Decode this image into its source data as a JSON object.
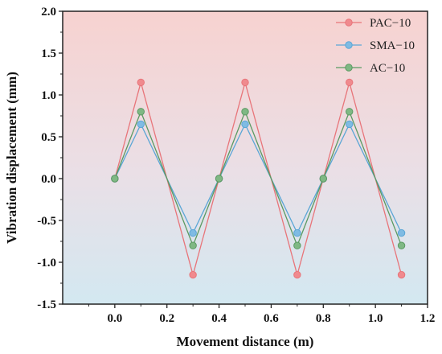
{
  "chart_data": {
    "type": "line",
    "xlabel": "Movement distance (m)",
    "ylabel": "Vibration displacement (mm)",
    "xlim": [
      -0.2,
      1.2
    ],
    "ylim": [
      -1.5,
      2.0
    ],
    "x_ticks": [
      "0.0",
      "0.2",
      "0.4",
      "0.6",
      "0.8",
      "1.0",
      "1.2"
    ],
    "x_tick_values": [
      0.0,
      0.2,
      0.4,
      0.6,
      0.8,
      1.0,
      1.2
    ],
    "y_ticks": [
      "2.0",
      "1.5",
      "1.0",
      "0.5",
      "0.0",
      "-0.5",
      "-1.0",
      "-1.5"
    ],
    "y_tick_values": [
      2.0,
      1.5,
      1.0,
      0.5,
      0.0,
      -0.5,
      -1.0,
      -1.5
    ],
    "grid": false,
    "legend_position": "top-right",
    "background": "vertical gradient from light pink (top) to light blue (bottom)",
    "series": [
      {
        "name": "PAC−10",
        "color": "#e8757a",
        "marker_color": "#f08a8e",
        "x": [
          0.0,
          0.1,
          0.3,
          0.4,
          0.5,
          0.7,
          0.8,
          0.9,
          1.1
        ],
        "y": [
          0.0,
          1.15,
          -1.15,
          0.0,
          1.15,
          -1.15,
          0.0,
          1.15,
          -1.15
        ]
      },
      {
        "name": "SMA−10",
        "color": "#5aa6d6",
        "marker_color": "#7fbbe3",
        "x": [
          0.0,
          0.1,
          0.3,
          0.4,
          0.5,
          0.7,
          0.8,
          0.9,
          1.1
        ],
        "y": [
          0.0,
          0.65,
          -0.65,
          0.0,
          0.65,
          -0.65,
          0.0,
          0.65,
          -0.65
        ]
      },
      {
        "name": "AC−10",
        "color": "#5a9a62",
        "marker_color": "#7fb884",
        "x": [
          0.0,
          0.1,
          0.3,
          0.4,
          0.5,
          0.7,
          0.8,
          0.9,
          1.1
        ],
        "y": [
          0.0,
          0.8,
          -0.8,
          0.0,
          0.8,
          -0.8,
          0.0,
          0.8,
          -0.8
        ]
      }
    ]
  }
}
